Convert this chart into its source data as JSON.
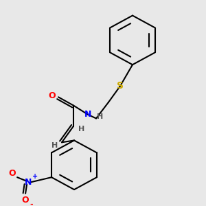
{
  "bg_color": "#e8e8e8",
  "bond_color": "#000000",
  "atom_colors": {
    "O": "#ff0000",
    "N": "#0000ff",
    "S": "#ccaa00",
    "H": "#555555",
    "C": "#000000"
  },
  "font_size_atom": 9,
  "font_size_h": 8,
  "lw": 1.5
}
